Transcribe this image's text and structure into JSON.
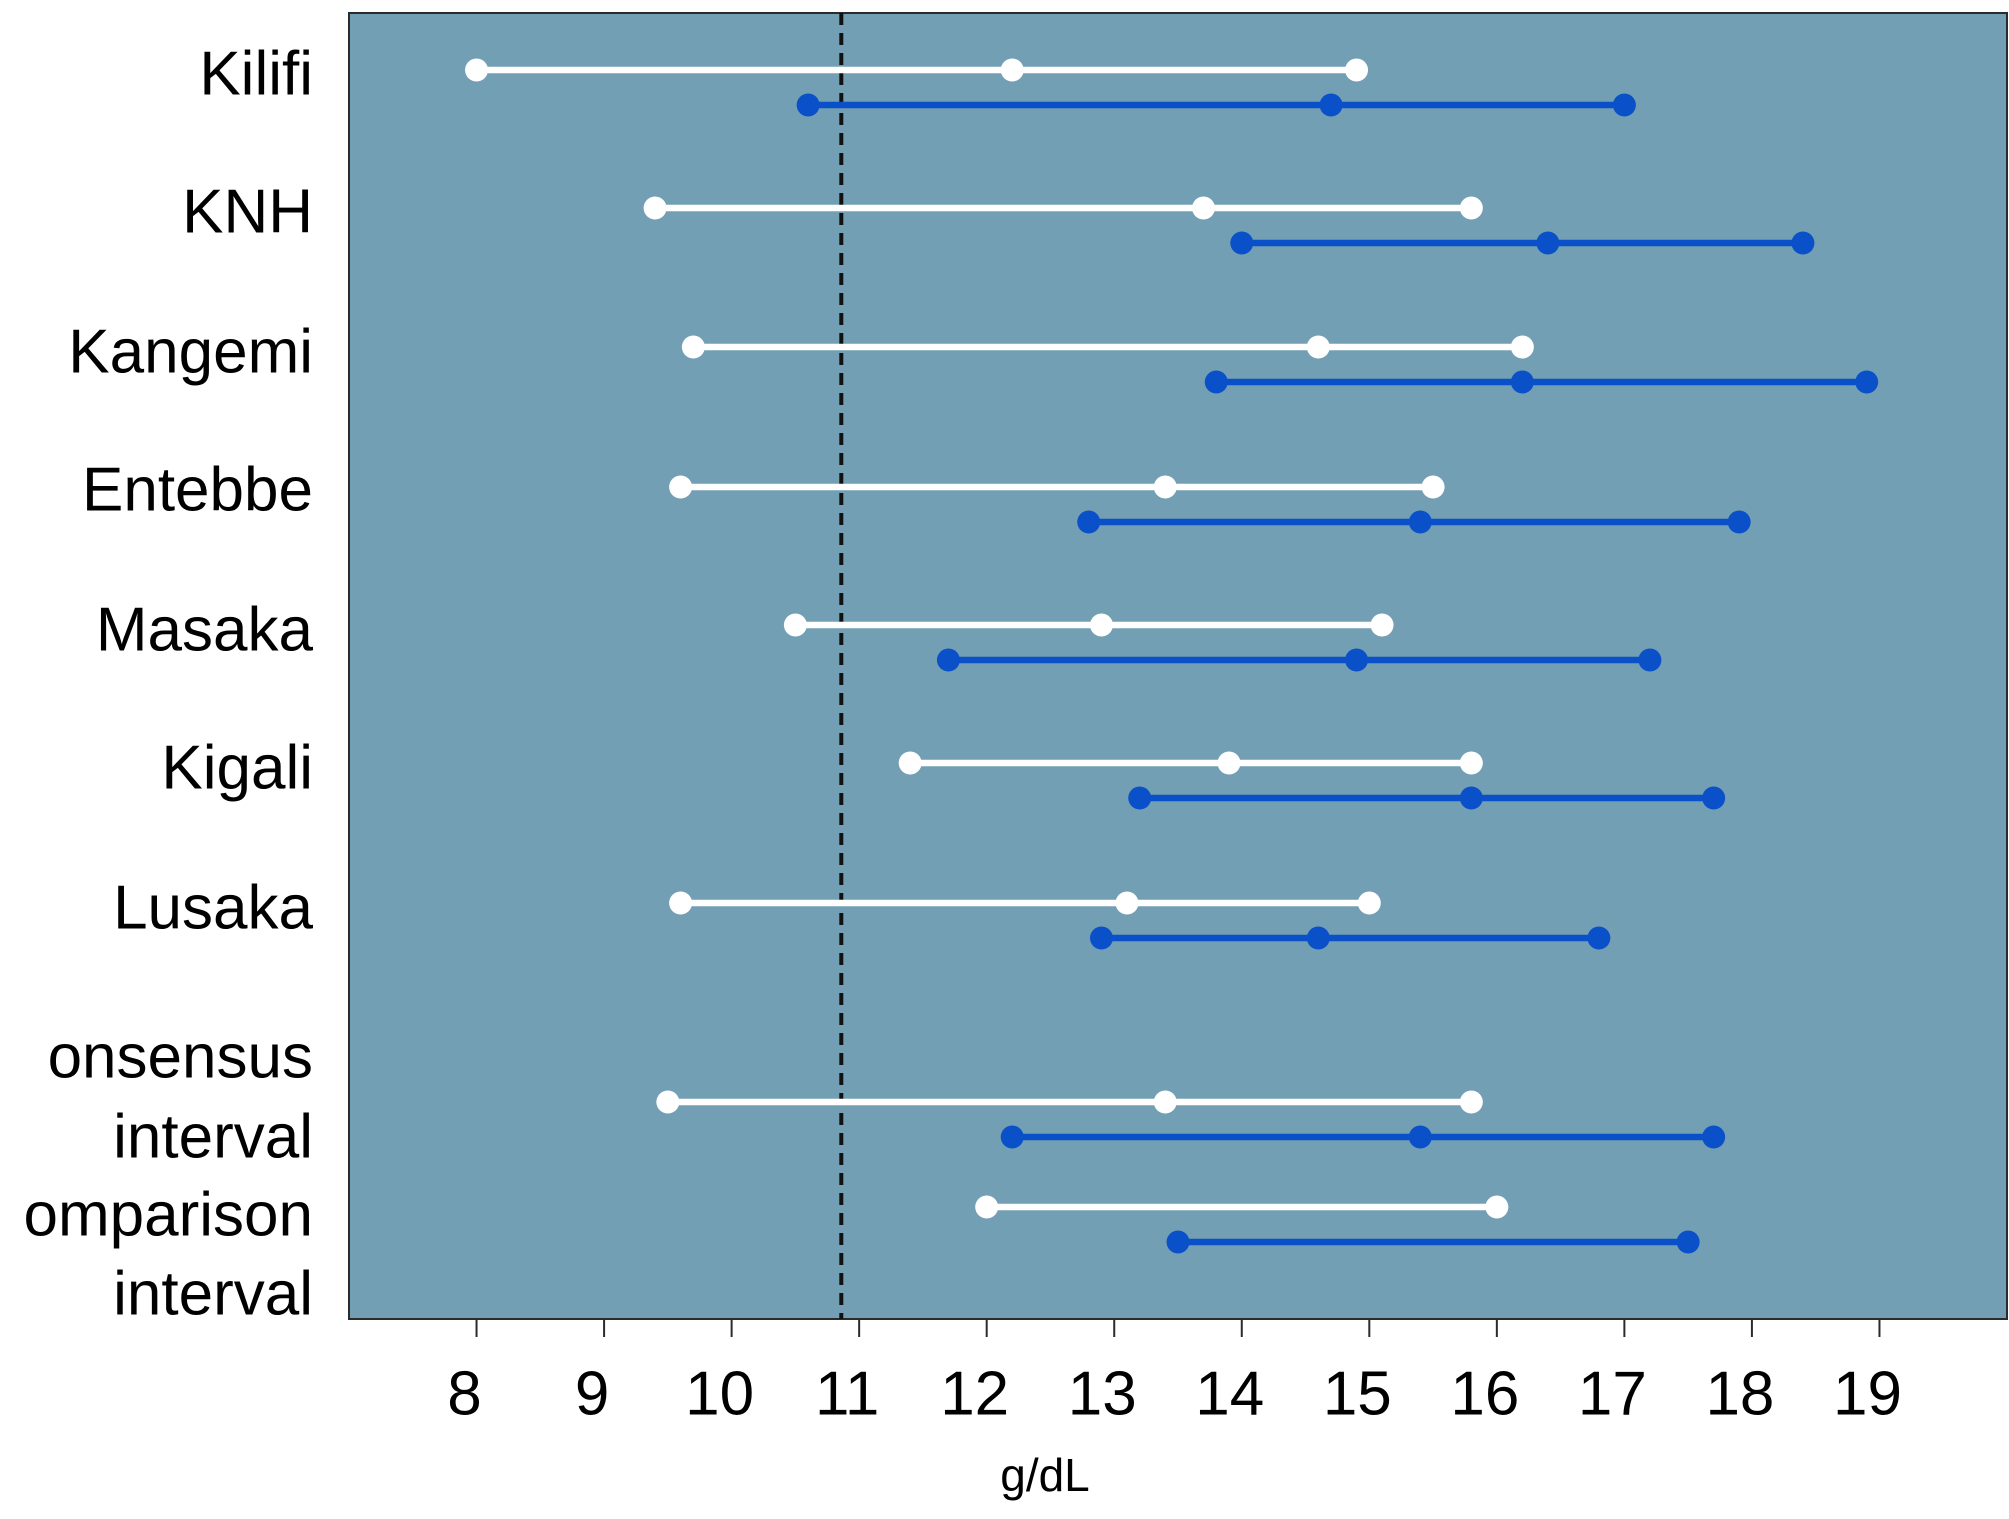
{
  "chart_data": {
    "type": "interval",
    "categories": [
      [
        "Kilifi"
      ],
      [
        "KNH"
      ],
      [
        "Kangemi"
      ],
      [
        "Entebbe"
      ],
      [
        "Masaka"
      ],
      [
        "Kigali"
      ],
      [
        "Lusaka"
      ],
      [
        "onsensus",
        "interval"
      ],
      [
        "omparison",
        "interval"
      ]
    ],
    "series": [
      {
        "color": "#ffffff",
        "low": [
          8.0,
          9.4,
          9.7,
          9.6,
          10.5,
          11.4,
          9.6,
          9.5,
          12.0
        ],
        "mid": [
          12.2,
          13.7,
          14.6,
          13.4,
          12.9,
          13.9,
          13.1,
          13.4,
          null
        ],
        "high": [
          14.9,
          15.8,
          16.2,
          15.5,
          15.1,
          15.8,
          15.0,
          15.8,
          16.0
        ]
      },
      {
        "color": "#0a50c8",
        "low": [
          10.6,
          14.0,
          13.8,
          12.8,
          11.7,
          13.2,
          12.9,
          12.2,
          13.5
        ],
        "mid": [
          14.7,
          16.4,
          16.2,
          15.4,
          14.9,
          15.8,
          14.6,
          15.4,
          null
        ],
        "high": [
          17.0,
          18.4,
          18.9,
          17.9,
          17.2,
          17.7,
          16.8,
          17.7,
          17.5
        ]
      }
    ],
    "x_label": "g/dL",
    "xlim": [
      7,
      20
    ],
    "xticks": [
      8,
      9,
      10,
      11,
      12,
      13,
      14,
      15,
      16,
      17,
      18,
      19
    ],
    "reference_line": 10.86,
    "background": "#739fb5"
  }
}
